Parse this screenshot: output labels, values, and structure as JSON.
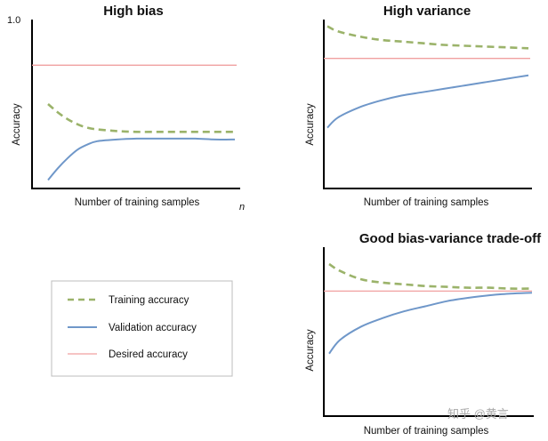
{
  "colors": {
    "training": "#9bb36a",
    "validation": "#6f97c9",
    "desired": "#f0a0a0",
    "axis": "#000000",
    "legend_border": "#bdbdbd"
  },
  "chart_data": [
    {
      "type": "line",
      "title": "High bias",
      "xlabel": "Number of training samples",
      "ylabel": "Accuracy",
      "x_end_label": "n",
      "ylim": [
        0,
        1.0
      ],
      "yticks": [
        {
          "value": 1.0,
          "label": "1.0"
        }
      ],
      "x": [
        0.05,
        0.1,
        0.15,
        0.2,
        0.25,
        0.3,
        0.4,
        0.5,
        0.6,
        0.7,
        0.8,
        0.9,
        1.0
      ],
      "desired": 0.73,
      "series": [
        {
          "name": "Training accuracy",
          "style": "dashed",
          "values": [
            0.5,
            0.45,
            0.41,
            0.38,
            0.36,
            0.35,
            0.34,
            0.335,
            0.335,
            0.335,
            0.335,
            0.335,
            0.335
          ]
        },
        {
          "name": "Validation accuracy",
          "style": "solid",
          "values": [
            0.05,
            0.12,
            0.18,
            0.23,
            0.26,
            0.28,
            0.29,
            0.295,
            0.295,
            0.295,
            0.295,
            0.29,
            0.29
          ]
        }
      ]
    },
    {
      "type": "line",
      "title": "High variance",
      "xlabel": "Number of training samples",
      "ylabel": "Accuracy",
      "ylim": [
        0,
        1.0
      ],
      "x": [
        0.05,
        0.1,
        0.2,
        0.3,
        0.4,
        0.5,
        0.6,
        0.7,
        0.8,
        0.9,
        1.0
      ],
      "desired": 0.77,
      "series": [
        {
          "name": "Training accuracy",
          "style": "dashed",
          "values": [
            0.96,
            0.93,
            0.9,
            0.88,
            0.87,
            0.86,
            0.85,
            0.845,
            0.84,
            0.835,
            0.83
          ]
        },
        {
          "name": "Validation accuracy",
          "style": "solid",
          "values": [
            0.36,
            0.42,
            0.48,
            0.52,
            0.55,
            0.57,
            0.59,
            0.61,
            0.63,
            0.65,
            0.67
          ]
        }
      ]
    },
    {
      "type": "line",
      "title": "Good bias-variance trade-off",
      "xlabel": "Number of training samples",
      "ylabel": "Accuracy",
      "ylim": [
        0,
        1.0
      ],
      "x": [
        0.05,
        0.1,
        0.2,
        0.3,
        0.4,
        0.5,
        0.6,
        0.7,
        0.8,
        0.9,
        1.0
      ],
      "desired": 0.74,
      "series": [
        {
          "name": "Training accuracy",
          "style": "dashed",
          "values": [
            0.9,
            0.86,
            0.81,
            0.79,
            0.78,
            0.77,
            0.765,
            0.76,
            0.76,
            0.755,
            0.755
          ]
        },
        {
          "name": "Validation accuracy",
          "style": "solid",
          "values": [
            0.37,
            0.45,
            0.53,
            0.58,
            0.62,
            0.65,
            0.68,
            0.7,
            0.715,
            0.725,
            0.73
          ]
        }
      ]
    }
  ],
  "legend": {
    "items": [
      {
        "label": "Training accuracy",
        "style": "dashed",
        "color_key": "training"
      },
      {
        "label": "Validation accuracy",
        "style": "solid",
        "color_key": "validation"
      },
      {
        "label": "Desired accuracy",
        "style": "solid",
        "color_key": "desired"
      }
    ]
  },
  "watermark": "知乎 @黄言"
}
